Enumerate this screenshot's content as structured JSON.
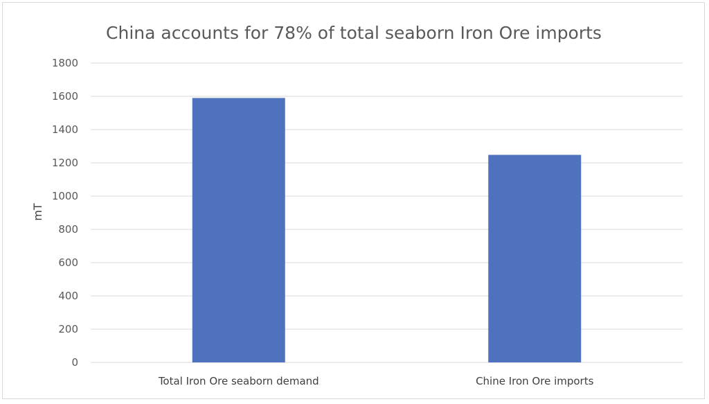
{
  "chart_data": {
    "type": "bar",
    "title": "China accounts for 78% of total seaborn Iron Ore imports",
    "xlabel": "",
    "ylabel": "mT",
    "categories": [
      "Total Iron Ore seaborn demand",
      "Chine Iron Ore imports"
    ],
    "values": [
      1590,
      1248
    ],
    "ylim": [
      0,
      1800
    ],
    "yticks": [
      "0",
      "200",
      "400",
      "600",
      "800",
      "1000",
      "1200",
      "1400",
      "1600",
      "1800"
    ],
    "grid": true,
    "legend": "none",
    "bar_color": "#4e72be",
    "grid_color": "#d9d9d9"
  }
}
